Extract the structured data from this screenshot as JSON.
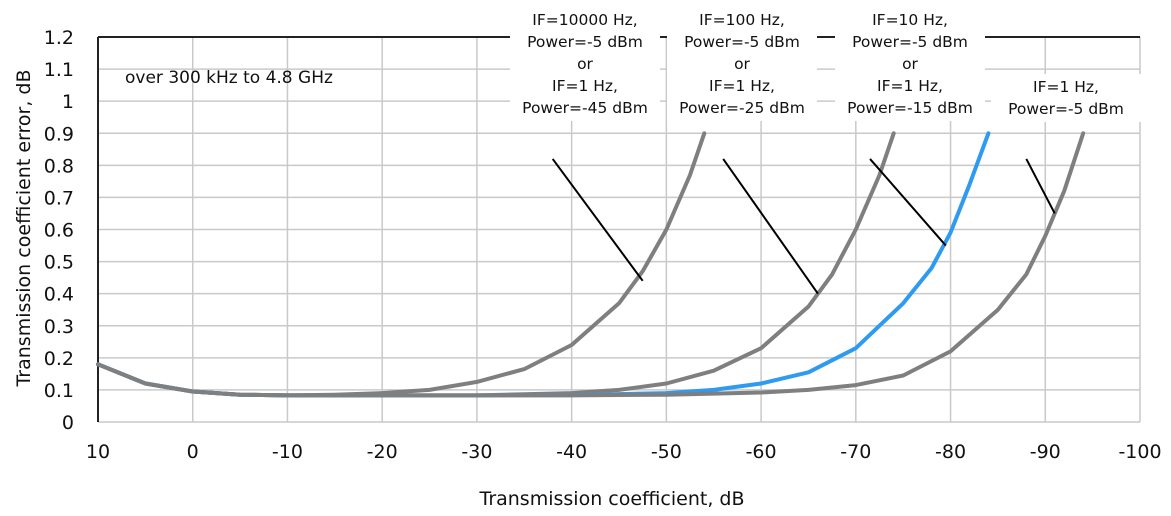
{
  "chart_data": {
    "type": "line",
    "xlabel": "Transmission coefficient, dB",
    "ylabel": "Transmission coefficient error, dB",
    "xlim": [
      10,
      -100
    ],
    "ylim": [
      0,
      1.2
    ],
    "x_ticks": [
      "10",
      "0",
      "-10",
      "-20",
      "-30",
      "-40",
      "-50",
      "-60",
      "-70",
      "-80",
      "-90",
      "-100"
    ],
    "y_ticks": [
      "0",
      "0.1",
      "0.2",
      "0.3",
      "0.4",
      "0.5",
      "0.6",
      "0.7",
      "0.8",
      "0.9",
      "1",
      "1.1",
      "1.2"
    ],
    "grid": true,
    "note": "over 300 kHz to 4.8 GHz",
    "series": [
      {
        "color": "#7f7f7f",
        "x": [
          10,
          5,
          0,
          -5,
          -10,
          -15,
          -20,
          -25,
          -30,
          -35,
          -40,
          -45,
          -47.5,
          -50,
          -52.5,
          -54
        ],
        "y": [
          0.18,
          0.12,
          0.095,
          0.085,
          0.083,
          0.085,
          0.09,
          0.1,
          0.125,
          0.165,
          0.24,
          0.37,
          0.47,
          0.6,
          0.77,
          0.9
        ]
      },
      {
        "color": "#7f7f7f",
        "x": [
          10,
          5,
          0,
          -5,
          -10,
          -20,
          -30,
          -40,
          -45,
          -50,
          -55,
          -60,
          -65,
          -67.5,
          -70,
          -72.5,
          -74
        ],
        "y": [
          0.18,
          0.12,
          0.095,
          0.085,
          0.083,
          0.083,
          0.083,
          0.09,
          0.1,
          0.12,
          0.16,
          0.23,
          0.36,
          0.46,
          0.6,
          0.77,
          0.9
        ]
      },
      {
        "color": "#2e9bf0",
        "x": [
          10,
          5,
          0,
          -5,
          -10,
          -20,
          -30,
          -40,
          -50,
          -55,
          -60,
          -65,
          -70,
          -75,
          -78,
          -80,
          -82,
          -84
        ],
        "y": [
          0.18,
          0.12,
          0.095,
          0.085,
          0.083,
          0.083,
          0.083,
          0.084,
          0.09,
          0.1,
          0.12,
          0.155,
          0.23,
          0.37,
          0.48,
          0.59,
          0.74,
          0.9
        ]
      },
      {
        "color": "#7f7f7f",
        "x": [
          10,
          5,
          0,
          -5,
          -10,
          -20,
          -30,
          -40,
          -50,
          -60,
          -65,
          -70,
          -75,
          -80,
          -85,
          -88,
          -90,
          -92,
          -94
        ],
        "y": [
          0.18,
          0.12,
          0.095,
          0.085,
          0.083,
          0.083,
          0.083,
          0.083,
          0.085,
          0.092,
          0.1,
          0.115,
          0.145,
          0.22,
          0.35,
          0.46,
          0.58,
          0.72,
          0.9
        ]
      }
    ],
    "annotations": [
      {
        "lines": [
          "IF=10000 Hz,",
          "Power=-5 dBm",
          "or",
          "IF=1 Hz,",
          "Power=-45 dBm"
        ],
        "target": [
          -47.5,
          0.44
        ],
        "from": [
          -38,
          0.82
        ]
      },
      {
        "lines": [
          "IF=100 Hz,",
          "Power=-5 dBm",
          "or",
          "IF=1 Hz,",
          "Power=-25 dBm"
        ],
        "target": [
          -66,
          0.4
        ],
        "from": [
          -56,
          0.82
        ]
      },
      {
        "lines": [
          "IF=10 Hz,",
          "Power=-5 dBm",
          "or",
          "IF=1 Hz,",
          "Power=-15 dBm"
        ],
        "target": [
          -79.5,
          0.55
        ],
        "from": [
          -71.5,
          0.82
        ]
      },
      {
        "lines": [
          "IF=1 Hz,",
          "Power=-5 dBm"
        ],
        "target": [
          -91,
          0.65
        ],
        "from": [
          -88,
          0.82
        ]
      }
    ]
  }
}
